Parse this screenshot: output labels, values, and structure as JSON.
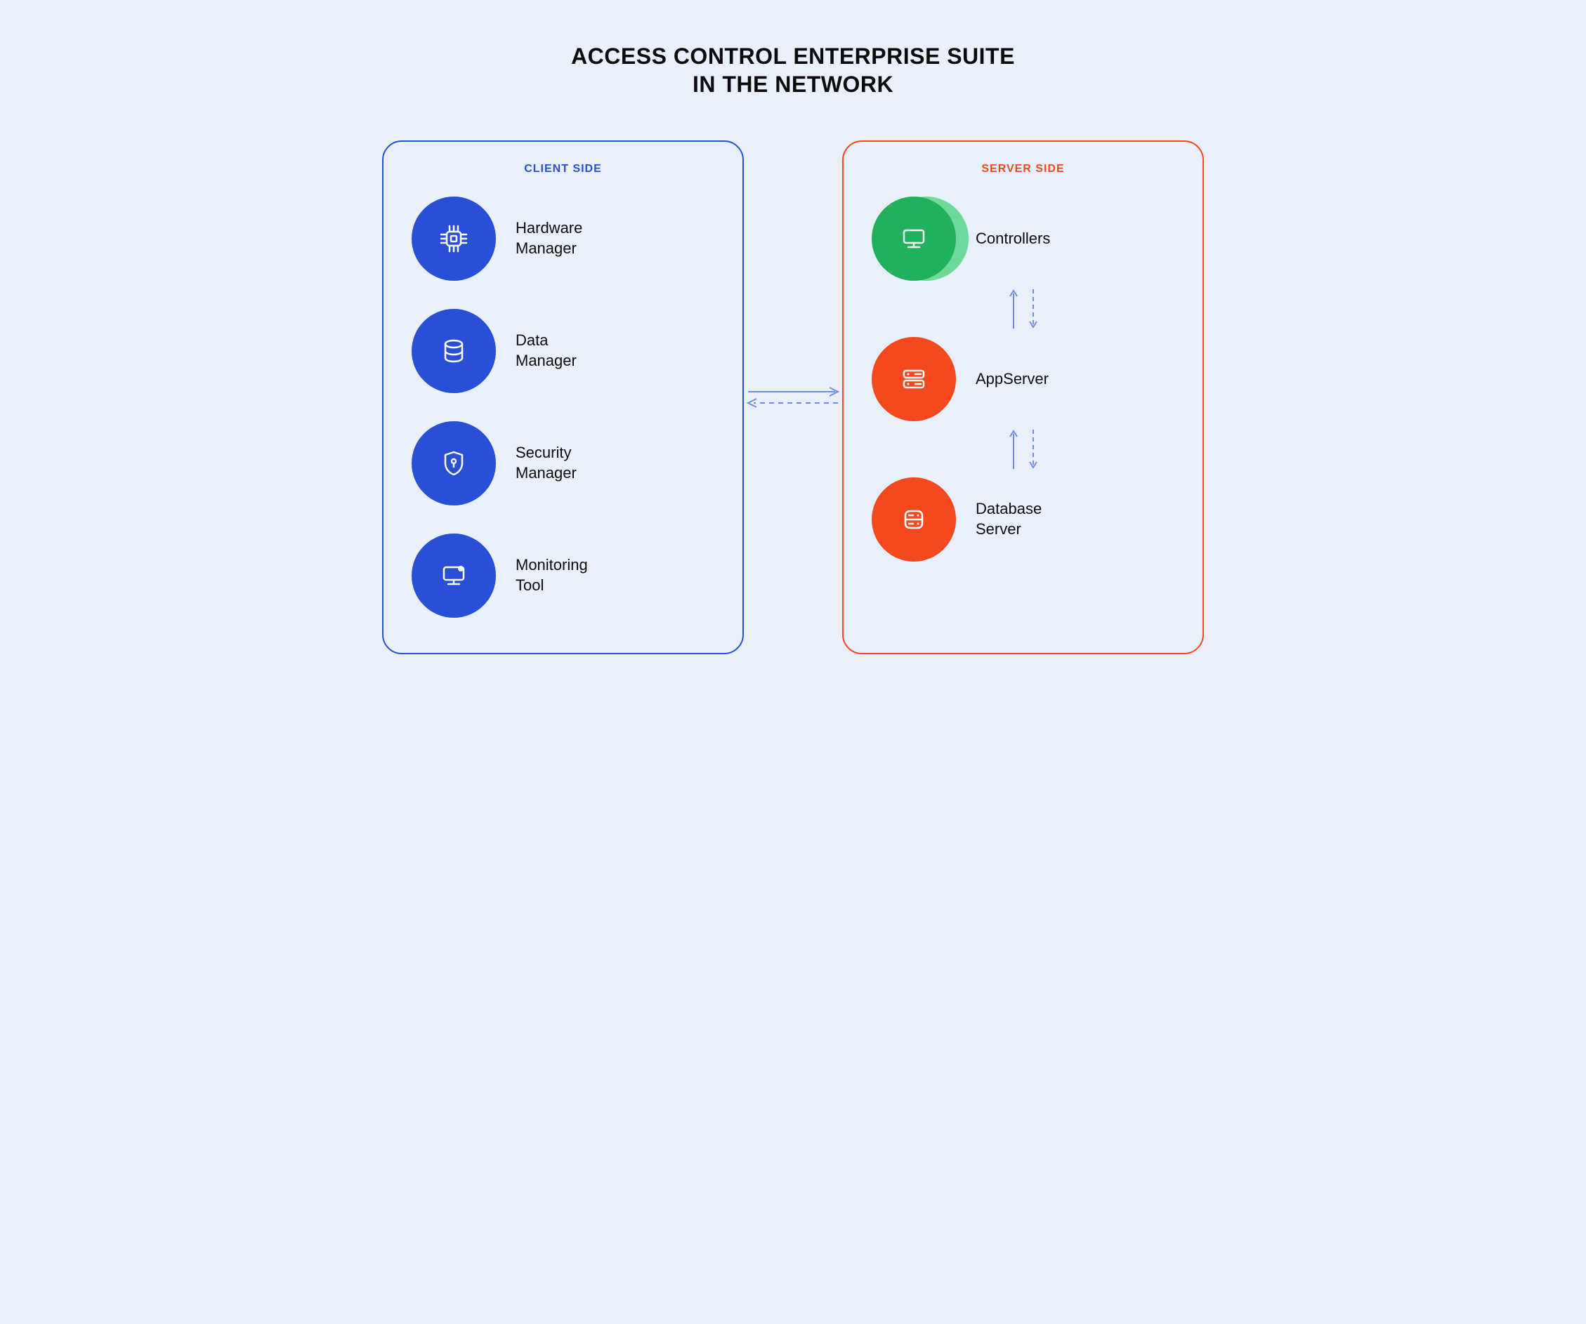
{
  "type": "network-architecture-diagram",
  "background_color": "#eaf0fb",
  "title": {
    "line1": "ACCESS CONTROL ENTERPRISE SUITE",
    "line2": "IN THE NETWORK",
    "color": "#0b0b0b",
    "fontsize": 32
  },
  "panel_border_radius": 28,
  "panel_border_width": 2,
  "circle_diameter": 120,
  "icon_color": "#ffffff",
  "item_label_color": "#0b0b0b",
  "item_label_fontsize": 22,
  "client_panel": {
    "title": "CLIENT SIDE",
    "title_color": "#2a4fd7",
    "title_fontsize": 16,
    "border_color": "#2a4fd7",
    "circle_color": "#2a4fd7",
    "items": [
      {
        "label": "Hardware\nManager",
        "icon": "cpu"
      },
      {
        "label": "Data\nManager",
        "icon": "database"
      },
      {
        "label": "Security\nManager",
        "icon": "shield"
      },
      {
        "label": "Monitoring\nTool",
        "icon": "monitor"
      }
    ]
  },
  "server_panel": {
    "title": "SERVER SIDE",
    "title_color": "#f4481e",
    "title_fontsize": 16,
    "border_color": "#f4481e",
    "items": [
      {
        "label": "Controllers",
        "icon": "display",
        "circle_color": "#21b05b",
        "stacked": true,
        "shadow_color": "#38cf72"
      },
      {
        "label": "AppServer",
        "icon": "server",
        "circle_color": "#f4481e",
        "stacked": false
      },
      {
        "label": "Database\nServer",
        "icon": "db-box",
        "circle_color": "#f4481e",
        "stacked": false
      }
    ]
  },
  "connector_color": "#6f8ddc",
  "vertical_arrow_color": "#6f8ddc",
  "vertical_arrow_height": 60
}
